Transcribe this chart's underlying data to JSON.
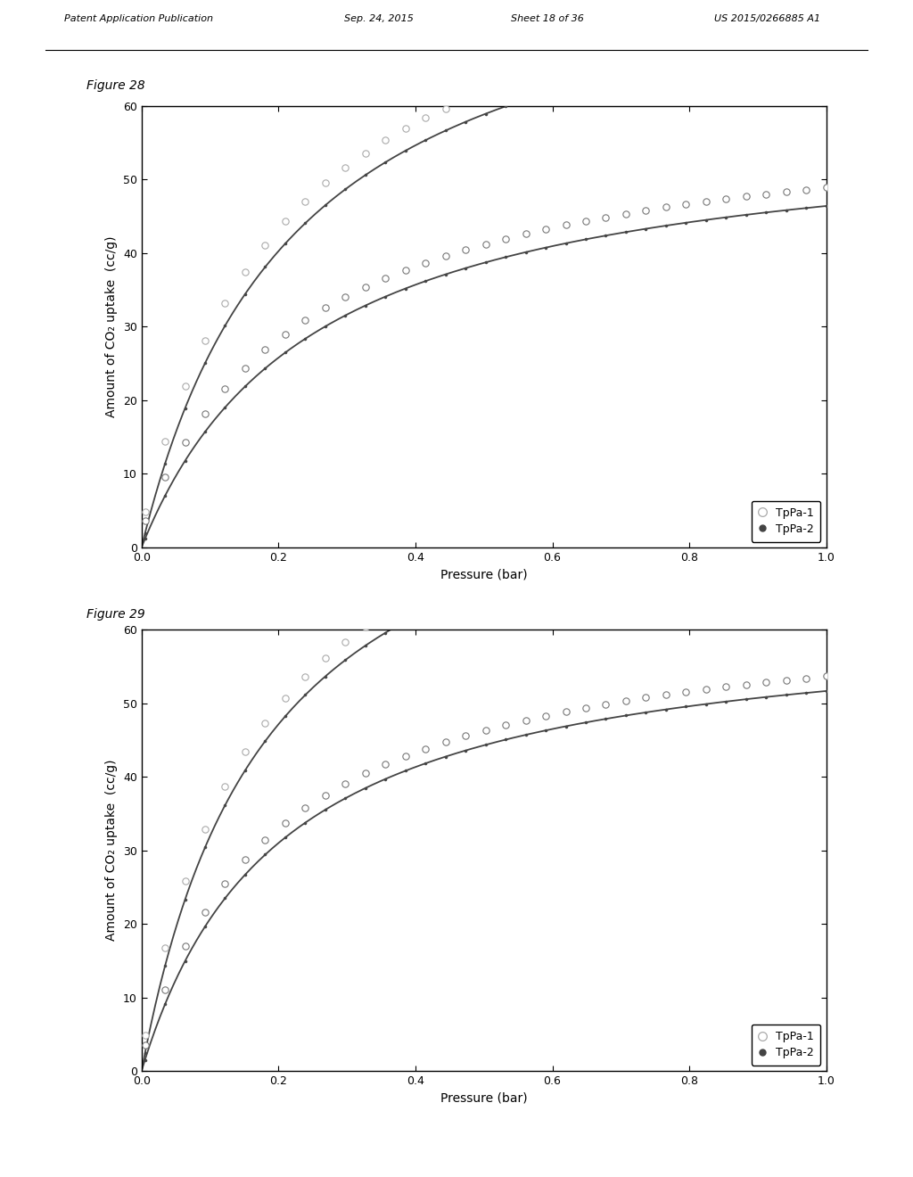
{
  "header_text": "Patent Application Publication",
  "header_date": "Sep. 24, 2015",
  "header_sheet": "Sheet 18 of 36",
  "header_patent": "US 2015/0266885 A1",
  "fig28_label": "Figure 28",
  "fig29_label": "Figure 29",
  "xlabel": "Pressure (bar)",
  "ylabel": "Amount of CO₂ uptake  (cc/g)",
  "xlim": [
    0.0,
    1.0
  ],
  "ylim": [
    0,
    60
  ],
  "yticks": [
    0,
    10,
    20,
    30,
    40,
    50,
    60
  ],
  "xticks": [
    0.0,
    0.2,
    0.4,
    0.6,
    0.8,
    1.0
  ],
  "legend_entries": [
    "TpPa-1",
    "TpPa-2"
  ],
  "background_color": "#ffffff",
  "TpPa1_open_color": "#aaaaaa",
  "TpPa2_open_color": "#777777",
  "solid_line_color": "#444444",
  "filled_dot_color": "#444444"
}
